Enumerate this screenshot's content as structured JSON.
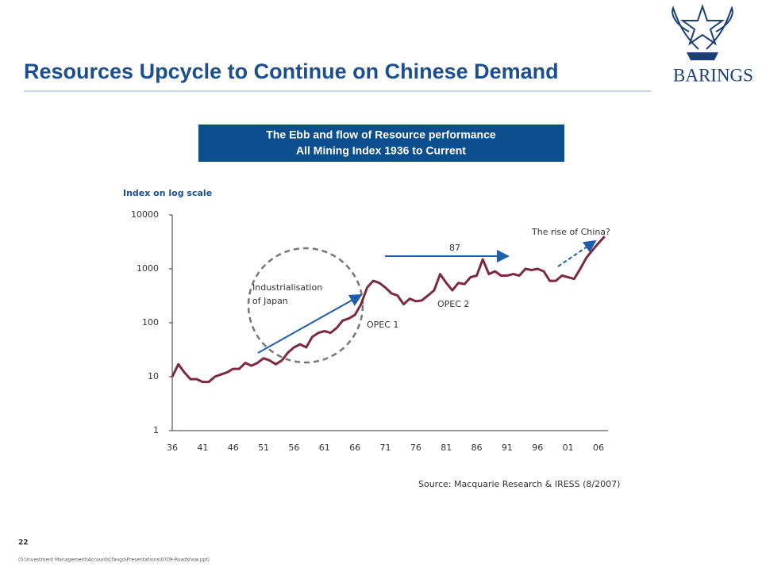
{
  "header": {
    "title": "Resources Upcycle to Continue on Chinese Demand",
    "logo": "BARINGS"
  },
  "chart_data": {
    "type": "line",
    "box_title": [
      "The Ebb and flow of Resource performance",
      "All Mining Index 1936 to Current"
    ],
    "y_axis_label": "Index on log scale",
    "log_scale": true,
    "ylim": [
      1,
      10000
    ],
    "yticks": [
      1,
      10,
      100,
      1000,
      10000
    ],
    "categories": [
      "36",
      null,
      null,
      null,
      null,
      "41",
      null,
      null,
      null,
      null,
      "46",
      null,
      null,
      null,
      null,
      "51",
      null,
      null,
      null,
      null,
      "56",
      null,
      null,
      null,
      null,
      "61",
      null,
      null,
      null,
      null,
      "66",
      null,
      null,
      null,
      null,
      "71",
      null,
      null,
      null,
      null,
      "76",
      null,
      null,
      null,
      null,
      "81",
      null,
      null,
      null,
      null,
      "86",
      null,
      null,
      null,
      null,
      "91",
      null,
      null,
      null,
      null,
      "96",
      null,
      null,
      null,
      null,
      "01",
      null,
      null,
      null,
      null,
      "06",
      null
    ],
    "series": [
      {
        "color": "#7b2a3f",
        "values": [
          10,
          17,
          12,
          9,
          9,
          8,
          8,
          10,
          11,
          12,
          14,
          14,
          18,
          16,
          18,
          22,
          20,
          17,
          20,
          28,
          35,
          40,
          35,
          55,
          65,
          70,
          65,
          80,
          110,
          120,
          140,
          220,
          450,
          600,
          550,
          450,
          350,
          320,
          220,
          280,
          250,
          260,
          320,
          400,
          800,
          550,
          400,
          550,
          520,
          700,
          750,
          1500,
          800,
          900,
          750,
          750,
          800,
          750,
          1000,
          950,
          1000,
          900,
          600,
          600,
          750,
          700,
          650,
          1000,
          1600,
          2200,
          3000,
          4000
        ]
      }
    ],
    "annotations": [
      "Industrialisation",
      "of Japan",
      "OPEC 1",
      "OPEC 2",
      "87",
      "The rise of China?"
    ],
    "source": "Source: Macquarie Research & IRESS  (8/2007)"
  },
  "footer": {
    "page": "22",
    "file": "(S:\\Investment Management\\Accounts\\Tango\\Presentations\\0709-Roadshow.ppt)"
  }
}
